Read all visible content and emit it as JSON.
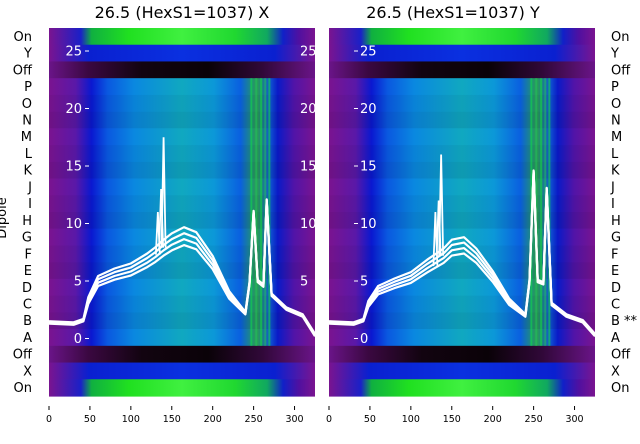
{
  "figure": {
    "ylabel": "Dipole"
  },
  "panels": [
    {
      "title": "26.5 (HexS1=1037) X",
      "dipole_labels": [
        "On",
        "Y",
        "Off",
        "P",
        "O",
        "N",
        "M",
        "L",
        "K",
        "J",
        "I",
        "H",
        "G",
        "F",
        "E",
        "D",
        "C",
        "B",
        "A",
        "Off",
        "X",
        "On"
      ],
      "overlay_y_ticks": [
        "0",
        "5",
        "10",
        "15",
        "20",
        "25"
      ],
      "x_ticks": [
        "0",
        "50",
        "100",
        "150",
        "200",
        "250",
        "300"
      ]
    },
    {
      "title": "26.5 (HexS1=1037) Y",
      "dipole_labels": [
        "On",
        "Y",
        "Off",
        "P",
        "O",
        "N",
        "M",
        "L",
        "K",
        "J",
        "I",
        "H",
        "G",
        "F",
        "E",
        "D",
        "C",
        "B **",
        "A",
        "Off",
        "X",
        "On"
      ],
      "overlay_y_ticks": [
        "0",
        "5",
        "10",
        "15",
        "20",
        "25"
      ],
      "x_ticks": [
        "0",
        "50",
        "100",
        "150",
        "200",
        "250",
        "300"
      ]
    }
  ],
  "chart_data": [
    {
      "type": "heatmap",
      "title": "26.5 (HexS1=1037) X",
      "xlim": [
        0,
        325
      ],
      "x_ticks": [
        0,
        50,
        100,
        150,
        200,
        250,
        300
      ],
      "ylabel": "Dipole",
      "rows_top_to_bottom": [
        "On",
        "Y",
        "Off",
        "P",
        "O",
        "N",
        "M",
        "L",
        "K",
        "J",
        "I",
        "H",
        "G",
        "F",
        "E",
        "D",
        "C",
        "B",
        "A",
        "Off",
        "X",
        "On"
      ],
      "overlay": {
        "type": "line",
        "ylim": [
          -5,
          27
        ],
        "y_ticks": [
          0,
          5,
          10,
          15,
          20,
          25
        ],
        "series_count": 4,
        "points": [
          [
            0,
            1.4
          ],
          [
            30,
            1.3
          ],
          [
            42,
            1.6
          ],
          [
            48,
            3.3
          ],
          [
            60,
            5.0
          ],
          [
            80,
            5.6
          ],
          [
            100,
            6.0
          ],
          [
            120,
            6.8
          ],
          [
            130,
            7.3
          ],
          [
            140,
            7.9
          ],
          [
            150,
            8.4
          ],
          [
            165,
            8.9
          ],
          [
            180,
            8.5
          ],
          [
            200,
            6.6
          ],
          [
            220,
            3.8
          ],
          [
            240,
            2.2
          ],
          [
            245,
            4.8
          ],
          [
            250,
            11.0
          ],
          [
            255,
            5.0
          ],
          [
            262,
            4.6
          ],
          [
            266,
            12.0
          ],
          [
            272,
            3.8
          ],
          [
            290,
            2.6
          ],
          [
            310,
            2.0
          ],
          [
            325,
            0.3
          ]
        ],
        "spikes": [
          [
            133,
            11.0
          ],
          [
            137,
            13.0
          ],
          [
            140,
            17.5
          ]
        ]
      }
    },
    {
      "type": "heatmap",
      "title": "26.5 (HexS1=1037) Y",
      "xlim": [
        0,
        325
      ],
      "x_ticks": [
        0,
        50,
        100,
        150,
        200,
        250,
        300
      ],
      "rows_top_to_bottom": [
        "On",
        "Y",
        "Off",
        "P",
        "O",
        "N",
        "M",
        "L",
        "K",
        "J",
        "I",
        "H",
        "G",
        "F",
        "E",
        "D",
        "C",
        "B **",
        "A",
        "Off",
        "X",
        "On"
      ],
      "overlay": {
        "type": "line",
        "ylim": [
          -5,
          27
        ],
        "y_ticks": [
          0,
          5,
          10,
          15,
          20,
          25
        ],
        "series_count": 4,
        "points": [
          [
            0,
            1.4
          ],
          [
            30,
            1.3
          ],
          [
            42,
            1.6
          ],
          [
            48,
            3.0
          ],
          [
            60,
            4.2
          ],
          [
            80,
            4.8
          ],
          [
            100,
            5.3
          ],
          [
            120,
            6.3
          ],
          [
            140,
            7.2
          ],
          [
            150,
            7.9
          ],
          [
            165,
            8.1
          ],
          [
            180,
            7.2
          ],
          [
            200,
            5.4
          ],
          [
            220,
            3.2
          ],
          [
            240,
            2.0
          ],
          [
            245,
            5.0
          ],
          [
            250,
            14.5
          ],
          [
            255,
            5.0
          ],
          [
            262,
            4.8
          ],
          [
            266,
            13.0
          ],
          [
            272,
            3.0
          ],
          [
            290,
            2.0
          ],
          [
            310,
            1.5
          ],
          [
            325,
            0.3
          ]
        ],
        "spikes": [
          [
            130,
            11.0
          ],
          [
            134,
            12.0
          ],
          [
            137,
            16.0
          ]
        ]
      }
    }
  ]
}
